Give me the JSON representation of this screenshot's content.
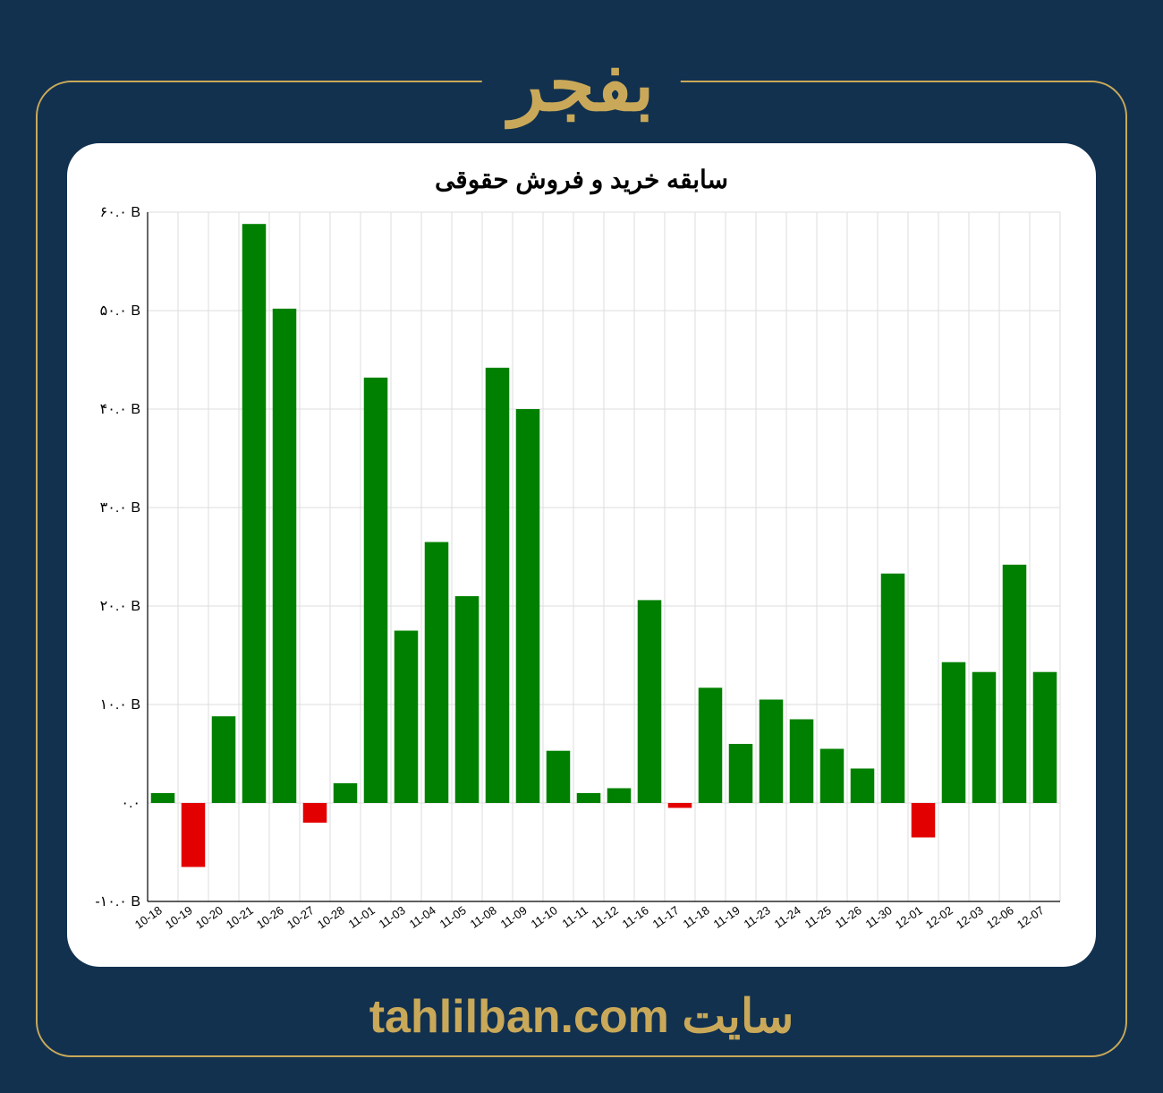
{
  "header": {
    "title": "بفجر"
  },
  "chart": {
    "type": "bar",
    "title": "سابقه خرید و فروش حقوقی",
    "title_fontsize": 28,
    "background_color": "#ffffff",
    "positive_color": "#008000",
    "negative_color": "#e30000",
    "grid_color": "#dddddd",
    "axis_color": "#000000",
    "ylim": [
      -10,
      60
    ],
    "ytick_step": 10,
    "ytick_labels": [
      "-۱۰.۰ B",
      "۰.۰",
      "۱۰.۰ B",
      "۲۰.۰ B",
      "۳۰.۰ B",
      "۴۰.۰ B",
      "۵۰.۰ B",
      "۶۰.۰ B"
    ],
    "bar_width": 0.78,
    "label_fontsize": 13,
    "categories": [
      "10-18",
      "10-19",
      "10-20",
      "10-21",
      "10-26",
      "10-27",
      "10-28",
      "11-01",
      "11-03",
      "11-04",
      "11-05",
      "11-08",
      "11-09",
      "11-10",
      "11-11",
      "11-12",
      "11-16",
      "11-17",
      "11-18",
      "11-19",
      "11-23",
      "11-24",
      "11-25",
      "11-26",
      "11-30",
      "12-01",
      "12-02",
      "12-03",
      "12-06",
      "12-07"
    ],
    "values": [
      1.0,
      -6.5,
      8.8,
      58.8,
      50.2,
      -2.0,
      2.0,
      43.2,
      17.5,
      26.5,
      21.0,
      44.2,
      40.0,
      5.3,
      1.0,
      1.5,
      20.6,
      -0.5,
      11.7,
      6.0,
      10.5,
      8.5,
      5.5,
      3.5,
      23.3,
      -3.5,
      14.3,
      13.3,
      24.2,
      13.3
    ]
  },
  "footer": {
    "site_label": "سایت",
    "site_url": "tahlilban.com"
  },
  "colors": {
    "page_bg": "#12314f",
    "accent": "#c9a959"
  }
}
